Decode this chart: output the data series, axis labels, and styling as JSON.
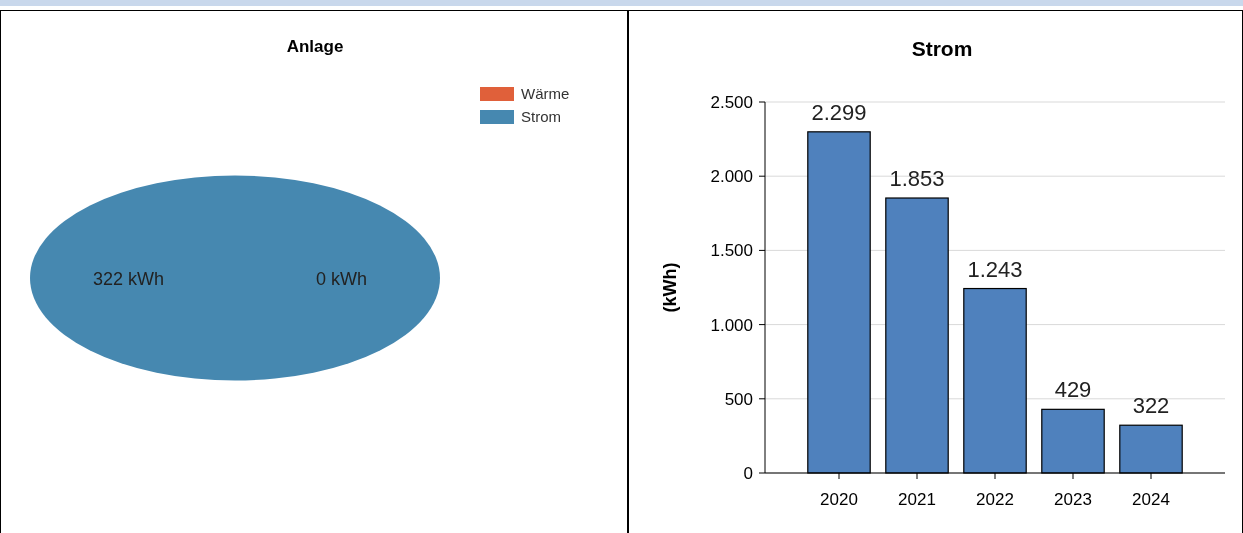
{
  "chart_data": [
    {
      "type": "pie",
      "title": "Anlage",
      "categories": [
        "Wärme",
        "Strom"
      ],
      "values": [
        0,
        322
      ],
      "colors": [
        "#e0603a",
        "#4688b0"
      ],
      "value_labels": [
        "0 kWh",
        "322 kWh"
      ],
      "legend": "top right"
    },
    {
      "type": "bar",
      "title": "Strom",
      "ylabel": "(kWh)",
      "categories": [
        "2020",
        "2021",
        "2022",
        "2023",
        "2024"
      ],
      "values": [
        2299,
        1853,
        1243,
        429,
        322
      ],
      "color": "#4f81bd",
      "value_labels": [
        "2.299",
        "1.853",
        "1.243",
        "429",
        "322"
      ],
      "ylim": [
        0,
        2500
      ],
      "yticks": [
        0,
        {
          "value": 500,
          "label": "500"
        },
        {
          "value": 1000,
          "label": "1.000"
        },
        {
          "value": 1500,
          "label": "1.500"
        },
        {
          "value": 2000,
          "label": "2.000"
        },
        {
          "value": 2500,
          "label": "2.500"
        }
      ],
      "grid": "y",
      "legend": false
    }
  ]
}
